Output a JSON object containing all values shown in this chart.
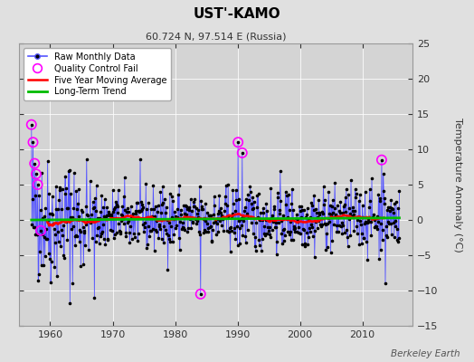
{
  "title": "UST'-KAMO",
  "subtitle": "60.724 N, 97.514 E (Russia)",
  "ylabel": "Temperature Anomaly (°C)",
  "watermark": "Berkeley Earth",
  "ylim": [
    -15,
    25
  ],
  "yticks": [
    -15,
    -10,
    -5,
    0,
    5,
    10,
    15,
    20,
    25
  ],
  "xlim": [
    1955,
    2018
  ],
  "xticks": [
    1960,
    1970,
    1980,
    1990,
    2000,
    2010
  ],
  "bg_color": "#e0e0e0",
  "plot_bg_color": "#d4d4d4",
  "line_color": "#5555ff",
  "dot_color": "#000000",
  "ma_color": "#ff0000",
  "trend_color": "#00bb00",
  "qc_color": "#ff00ff",
  "seed": 42,
  "start_year": 1957,
  "end_year": 2015,
  "months_per_year": 12
}
